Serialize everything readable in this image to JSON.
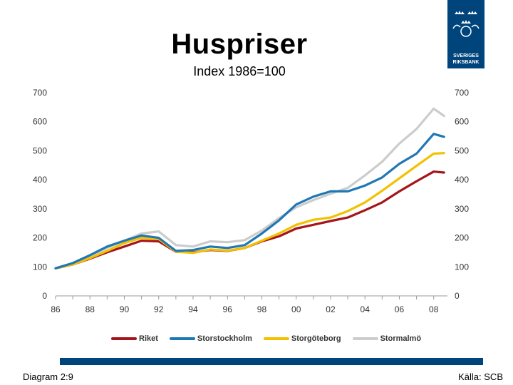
{
  "header": {
    "title": "Huspriser",
    "subtitle": "Index 1986=100"
  },
  "logo": {
    "lines": [
      "SVERIGES",
      "RIKSBANK"
    ],
    "color": "#00447c"
  },
  "footer": {
    "left": "Diagram 2:9",
    "right": "Källa: SCB"
  },
  "chart_data": {
    "type": "line",
    "x": [
      "86",
      "87",
      "88",
      "89",
      "90",
      "91",
      "92",
      "93",
      "94",
      "95",
      "96",
      "97",
      "98",
      "99",
      "00",
      "01",
      "02",
      "03",
      "04",
      "05",
      "06",
      "07",
      "08",
      "08.6"
    ],
    "x_tick_labels": [
      "86",
      "88",
      "90",
      "92",
      "94",
      "96",
      "98",
      "00",
      "02",
      "04",
      "06",
      "08"
    ],
    "y_ticks": [
      0,
      100,
      200,
      300,
      400,
      500,
      600,
      700
    ],
    "ylim": [
      0,
      700
    ],
    "grid": false,
    "legend_position": "bottom",
    "series": [
      {
        "name": "Riket",
        "color": "#a4161a",
        "values": [
          95,
          108,
          128,
          150,
          170,
          190,
          188,
          152,
          150,
          158,
          155,
          165,
          188,
          205,
          232,
          245,
          258,
          270,
          295,
          322,
          360,
          395,
          428,
          425
        ]
      },
      {
        "name": "Storstockholm",
        "color": "#1f77b4",
        "values": [
          95,
          113,
          140,
          170,
          190,
          208,
          200,
          155,
          158,
          170,
          165,
          175,
          215,
          260,
          315,
          342,
          360,
          360,
          380,
          408,
          455,
          490,
          558,
          548
        ]
      },
      {
        "name": "Storgöteborg",
        "color": "#f2c100",
        "values": [
          95,
          108,
          130,
          155,
          182,
          200,
          196,
          152,
          148,
          160,
          156,
          165,
          190,
          215,
          245,
          262,
          270,
          292,
          322,
          362,
          405,
          448,
          490,
          492
        ]
      },
      {
        "name": "Stormalmö",
        "color": "#cccccc",
        "values": [
          95,
          112,
          135,
          165,
          190,
          215,
          222,
          175,
          170,
          188,
          185,
          192,
          225,
          268,
          305,
          330,
          352,
          372,
          415,
          462,
          525,
          575,
          645,
          620
        ]
      }
    ]
  }
}
